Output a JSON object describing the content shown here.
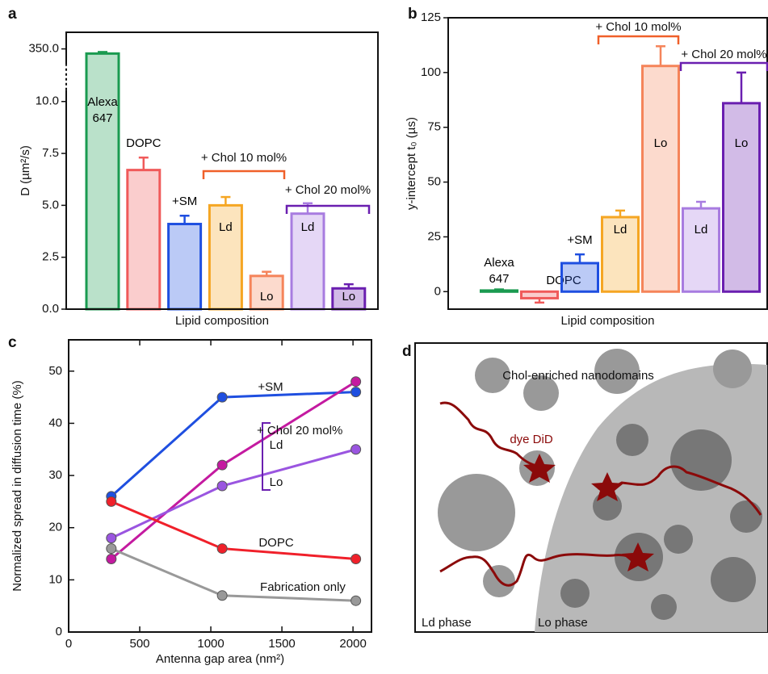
{
  "chart_data": [
    {
      "type": "bar",
      "panel_label": "a",
      "y_label": "D (µm²/s)",
      "x_label": "Lipid composition",
      "categories": [
        "Alexa 647",
        "DOPC",
        "+SM",
        "Ld",
        "Lo",
        "Ld",
        "Lo"
      ],
      "values": [
        320,
        6.7,
        4.1,
        5.0,
        1.6,
        4.6,
        1.0
      ],
      "errors": [
        10,
        0.6,
        0.4,
        0.4,
        0.2,
        0.5,
        0.2
      ],
      "colors": [
        "#1a9a50",
        "#f05a5a",
        "#1f4fe0",
        "#f5a623",
        "#f5845a",
        "#a87ce0",
        "#6a1fb0"
      ],
      "ylim": [
        0,
        350
      ],
      "axis_break": true,
      "yticks": [
        {
          "value": 0,
          "label": "0.0"
        },
        {
          "value": 2.5,
          "label": "2.5"
        },
        {
          "value": 5,
          "label": "5.0"
        },
        {
          "value": 7.5,
          "label": "7.5"
        },
        {
          "value": 10,
          "label": "10.0"
        },
        {
          "value": 350,
          "label": "350.0"
        }
      ],
      "groups": [
        {
          "label": "+ Chol 10 mol%",
          "color": "#f0602a"
        },
        {
          "label": "+ Chol 20 mol%",
          "color": "#6a1fb0"
        }
      ]
    },
    {
      "type": "bar",
      "panel_label": "b",
      "y_label": "y-intercept t₀ (µs)",
      "x_label": "Lipid composition",
      "categories": [
        "Alexa 647",
        "DOPC",
        "+SM",
        "Ld",
        "Lo",
        "Ld",
        "Lo"
      ],
      "values": [
        0.5,
        -3,
        13,
        34,
        103,
        38,
        86
      ],
      "errors": [
        0.5,
        2,
        4,
        3,
        9,
        3,
        14
      ],
      "colors": [
        "#1a9a50",
        "#f05a5a",
        "#1f4fe0",
        "#f5a623",
        "#f5845a",
        "#a87ce0",
        "#6a1fb0"
      ],
      "ylim": [
        -8,
        125
      ],
      "yticks": [
        0,
        25,
        50,
        75,
        100,
        125
      ],
      "groups": [
        {
          "label": "+ Chol 10 mol%",
          "color": "#f0602a"
        },
        {
          "label": "+ Chol 20 mol%",
          "color": "#6a1fb0"
        }
      ]
    },
    {
      "type": "line",
      "panel_label": "c",
      "y_label": "Normalized spread in diffusion time (%)",
      "x_label": "Antenna gap area (nm²)",
      "x": [
        300,
        1080,
        2020
      ],
      "xlim": [
        0,
        2130
      ],
      "xticks": [
        0,
        500,
        1000,
        1500,
        2000
      ],
      "ylim": [
        0,
        56
      ],
      "yticks": [
        0,
        10,
        20,
        30,
        40,
        50
      ],
      "annotation": "+ Chol 20 mol%",
      "series": [
        {
          "name": "+SM",
          "color": "#1f4fe0",
          "values": [
            26,
            45,
            46
          ]
        },
        {
          "name": "Ld",
          "color": "#c41aa0",
          "values": [
            14,
            32,
            48
          ]
        },
        {
          "name": "Lo",
          "color": "#9a55e0",
          "values": [
            18,
            28,
            35
          ]
        },
        {
          "name": "DOPC",
          "color": "#f0202a",
          "values": [
            25,
            16,
            14
          ]
        },
        {
          "name": "Fabrication only",
          "color": "#999999",
          "values": [
            16,
            7,
            6
          ]
        }
      ]
    }
  ],
  "diagram": {
    "panel_label": "d",
    "nanodomains": "Chol-enriched nanodomains",
    "dye": "dye DiD",
    "ld_phase": "Ld phase",
    "lo_phase": "Lo phase"
  }
}
